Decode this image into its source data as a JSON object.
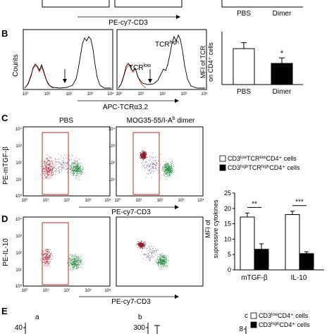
{
  "panels": {
    "A": {
      "xlabel": "PE-cy7-CD3",
      "bar_chart": {
        "categories": [
          "PBS",
          "Dimer"
        ]
      }
    },
    "B": {
      "letter": "B",
      "ylabel": "Counts",
      "xlabel": "APC-TCRα3.2",
      "tick_labels": [
        "10⁰",
        "10¹",
        "10²",
        "10³",
        "10⁴"
      ],
      "tcr_high": "TCR",
      "tcr_high_sup": "high",
      "tcr_low": "TCR",
      "tcr_low_sup": "low",
      "bar_chart": {
        "type": "bar",
        "ylabel_line1": "MFI of TCR",
        "ylabel_line2": "on CD4⁺ cells",
        "categories": [
          "PBS",
          "Dimer"
        ],
        "values": [
          272,
          160
        ],
        "errors": [
          45,
          42
        ],
        "ylim": [
          0,
          400
        ],
        "significance": "*",
        "colors": [
          "#ffffff",
          "#000000"
        ]
      }
    },
    "C": {
      "letter": "C",
      "title_left": "PBS",
      "title_right": "MOG35-55/I-A",
      "title_right_sup": "b",
      "title_right_after": " dimer",
      "ylabel": "PE-mTGF-β",
      "xlabel": "PE-cy7-CD3"
    },
    "D": {
      "letter": "D",
      "ylabel": "PE-IL-10",
      "xlabel": "PE-cy7-CD3"
    },
    "CD_bar_chart": {
      "type": "bar",
      "legend": [
        {
          "prefix": "CD3",
          "sup1": "low",
          "mid": "TCR",
          "sup2": "low",
          "suffix": "CD4⁺ cells",
          "color": "#ffffff"
        },
        {
          "prefix": "CD3",
          "sup1": "high",
          "mid": "TCR",
          "sup2": "high",
          "suffix": "CD4⁺ cells",
          "color": "#000000"
        }
      ],
      "ylabel_line1": "MFI of",
      "ylabel_line2": "supressive cytokines",
      "categories": [
        "mTGF-β",
        "IL-10"
      ],
      "series": [
        {
          "values": [
            17.2,
            18.0
          ],
          "errors": [
            1.3,
            1.1
          ],
          "color": "#ffffff"
        },
        {
          "values": [
            6.7,
            5.3
          ],
          "errors": [
            1.8,
            0.6
          ],
          "color": "#000000"
        }
      ],
      "yticks": [
        0,
        5,
        10,
        15,
        20,
        25
      ],
      "ylim": [
        0,
        25
      ],
      "significance": [
        "**",
        "***"
      ]
    },
    "E": {
      "letter": "E",
      "sub_a": "a",
      "sub_b": "b",
      "sub_c": "c",
      "a_tick": "40",
      "b_tick": "300",
      "c_tick": "8",
      "legend": [
        {
          "prefix": "CD3",
          "sup": "low",
          "suffix": "CD4⁺ cells",
          "color": "#ffffff"
        },
        {
          "prefix": "CD3",
          "sup": "high",
          "suffix": "CD4⁺ cells",
          "color": "#000000"
        }
      ]
    }
  }
}
